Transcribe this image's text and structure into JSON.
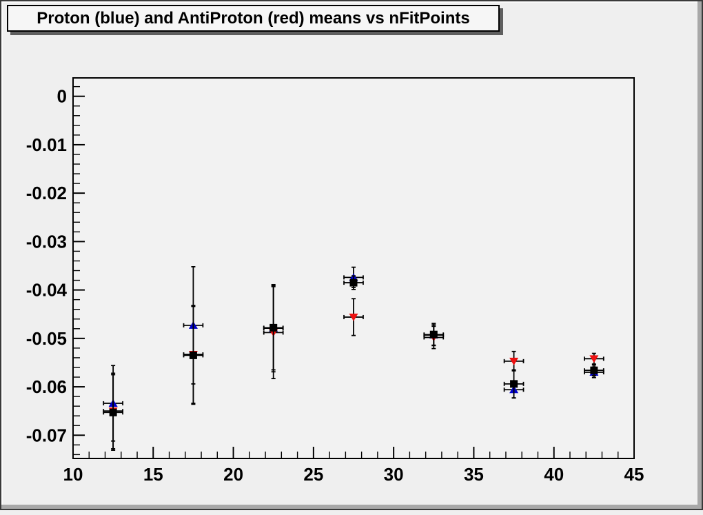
{
  "window": {
    "canvas_color": "#efefef",
    "frame_fill": "#f2f2f2",
    "bevel_shadow": "#a8a8a8",
    "title_box_fill": "#f6f6f6",
    "title_box_shadow": "#5f5f5f"
  },
  "chart_data": {
    "type": "scatter",
    "title": "Proton (blue) and AntiProton (red) means vs nFitPoints",
    "xlabel": "",
    "ylabel": "",
    "grid": false,
    "legend_position": "none",
    "xlim": [
      10,
      45
    ],
    "ylim": [
      -0.0748,
      0.0038
    ],
    "x_ticks": {
      "major": [
        10,
        15,
        20,
        25,
        30,
        35,
        40,
        45
      ],
      "labels": [
        "10",
        "15",
        "20",
        "25",
        "30",
        "35",
        "40",
        "45"
      ],
      "minor_step": 1
    },
    "y_ticks": {
      "major": [
        0,
        -0.01,
        -0.02,
        -0.03,
        -0.04,
        -0.05,
        -0.06,
        -0.07
      ],
      "labels": [
        "0",
        "-0.01",
        "-0.02",
        "-0.03",
        "-0.04",
        "-0.05",
        "-0.06",
        "-0.07"
      ],
      "minor_step": 0.002
    },
    "x": [
      12.5,
      17.5,
      22.5,
      27.5,
      32.5,
      37.5,
      42.5
    ],
    "xerr": 0.6,
    "error_bar_color": "#000000",
    "series": [
      {
        "name": "Proton (blue)",
        "marker": "triangle-up",
        "color": "#0000cc",
        "y": [
          -0.0634,
          -0.0473,
          -0.0479,
          -0.0374,
          -0.0493,
          -0.0606,
          -0.057
        ],
        "yerr": [
          0.0078,
          0.0121,
          0.009,
          0.0021,
          0.0021,
          0.0017,
          0.0011
        ]
      },
      {
        "name": "AntiProton (red)",
        "marker": "triangle-down",
        "color": "#ee1111",
        "y": [
          -0.065,
          -0.0533,
          -0.0488,
          -0.0456,
          -0.0498,
          -0.0547,
          -0.0542
        ],
        "yerr": [
          0.0078,
          0.0101,
          0.0095,
          0.0038,
          0.0023,
          0.002,
          0.0011
        ]
      },
      {
        "name": "black squares",
        "marker": "square",
        "color": "#000000",
        "y": [
          -0.0653,
          -0.0535,
          -0.0478,
          -0.0385,
          -0.0492,
          -0.0594,
          -0.0566
        ],
        "yerr": [
          0.0078,
          0.0101,
          0.0087,
          0.0014,
          0.0023,
          0.0029,
          0.0011
        ]
      }
    ]
  }
}
